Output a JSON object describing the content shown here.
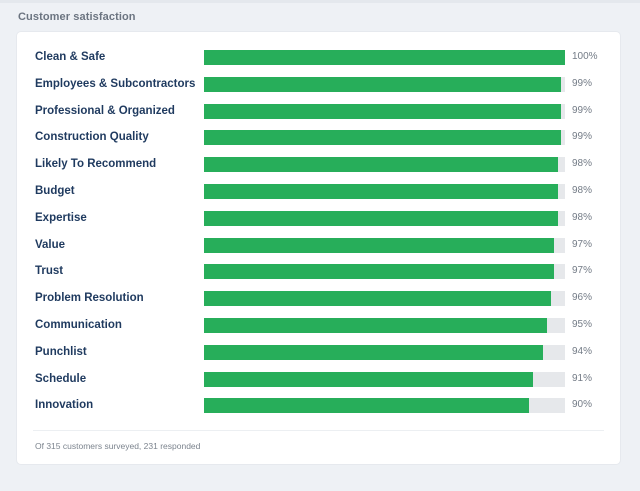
{
  "section": {
    "title": "Customer satisfaction"
  },
  "ratings": [
    {
      "label": "Clean & Safe",
      "value": 100,
      "display": "100%"
    },
    {
      "label": "Employees & Subcontractors",
      "value": 99,
      "display": "99%"
    },
    {
      "label": "Professional & Organized",
      "value": 99,
      "display": "99%"
    },
    {
      "label": "Construction Quality",
      "value": 99,
      "display": "99%"
    },
    {
      "label": "Likely To Recommend",
      "value": 98,
      "display": "98%"
    },
    {
      "label": "Budget",
      "value": 98,
      "display": "98%"
    },
    {
      "label": "Expertise",
      "value": 98,
      "display": "98%"
    },
    {
      "label": "Value",
      "value": 97,
      "display": "97%"
    },
    {
      "label": "Trust",
      "value": 97,
      "display": "97%"
    },
    {
      "label": "Problem Resolution",
      "value": 96,
      "display": "96%"
    },
    {
      "label": "Communication",
      "value": 95,
      "display": "95%"
    },
    {
      "label": "Punchlist",
      "value": 94,
      "display": "94%"
    },
    {
      "label": "Schedule",
      "value": 91,
      "display": "91%"
    },
    {
      "label": "Innovation",
      "value": 90,
      "display": "90%"
    }
  ],
  "footer": {
    "note": "Of 315 customers surveyed, 231 responded"
  },
  "colors": {
    "bar_fill": "#27ae5a",
    "bar_track": "#e6e8eb",
    "label_text": "#1f3a5f"
  }
}
